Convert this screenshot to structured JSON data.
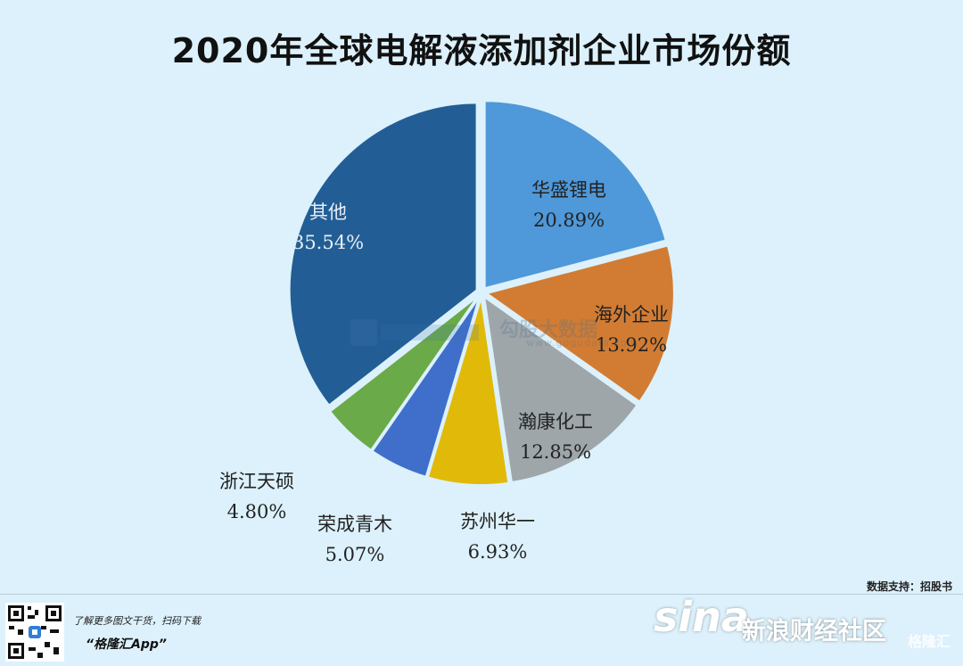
{
  "title": "2020年全球电解液添加剂企业市场份额",
  "chart_data": {
    "type": "pie",
    "title": "2020年全球电解液添加剂企业市场份额",
    "slices": [
      {
        "name": "华盛锂电",
        "value": 20.89,
        "label": "20.89%",
        "color": "#4f98d9"
      },
      {
        "name": "海外企业",
        "value": 13.92,
        "label": "13.92%",
        "color": "#d27c33"
      },
      {
        "name": "瀚康化工",
        "value": 12.85,
        "label": "12.85%",
        "color": "#9ea6aa"
      },
      {
        "name": "苏州华一",
        "value": 6.93,
        "label": "6.93%",
        "color": "#e1b909"
      },
      {
        "name": "荣成青木",
        "value": 5.07,
        "label": "5.07%",
        "color": "#3f6fcb"
      },
      {
        "name": "浙江天硕",
        "value": 4.8,
        "label": "4.80%",
        "color": "#6aaa48"
      },
      {
        "name": "其他",
        "value": 35.54,
        "label": "35.54%",
        "color": "#225e95"
      }
    ],
    "start_angle_deg": 0,
    "direction": "clockwise"
  },
  "watermark": {
    "text": "勾股大数据",
    "url": "www.gogudata.com"
  },
  "source": "数据支持：招股书",
  "footer": {
    "promo": "了解更多图文干货，扫码下载",
    "app": "“格隆汇App”",
    "sina_logo": "sina",
    "sina_community": "新浪财经社区",
    "gelonghui_logo": "格隆汇"
  }
}
